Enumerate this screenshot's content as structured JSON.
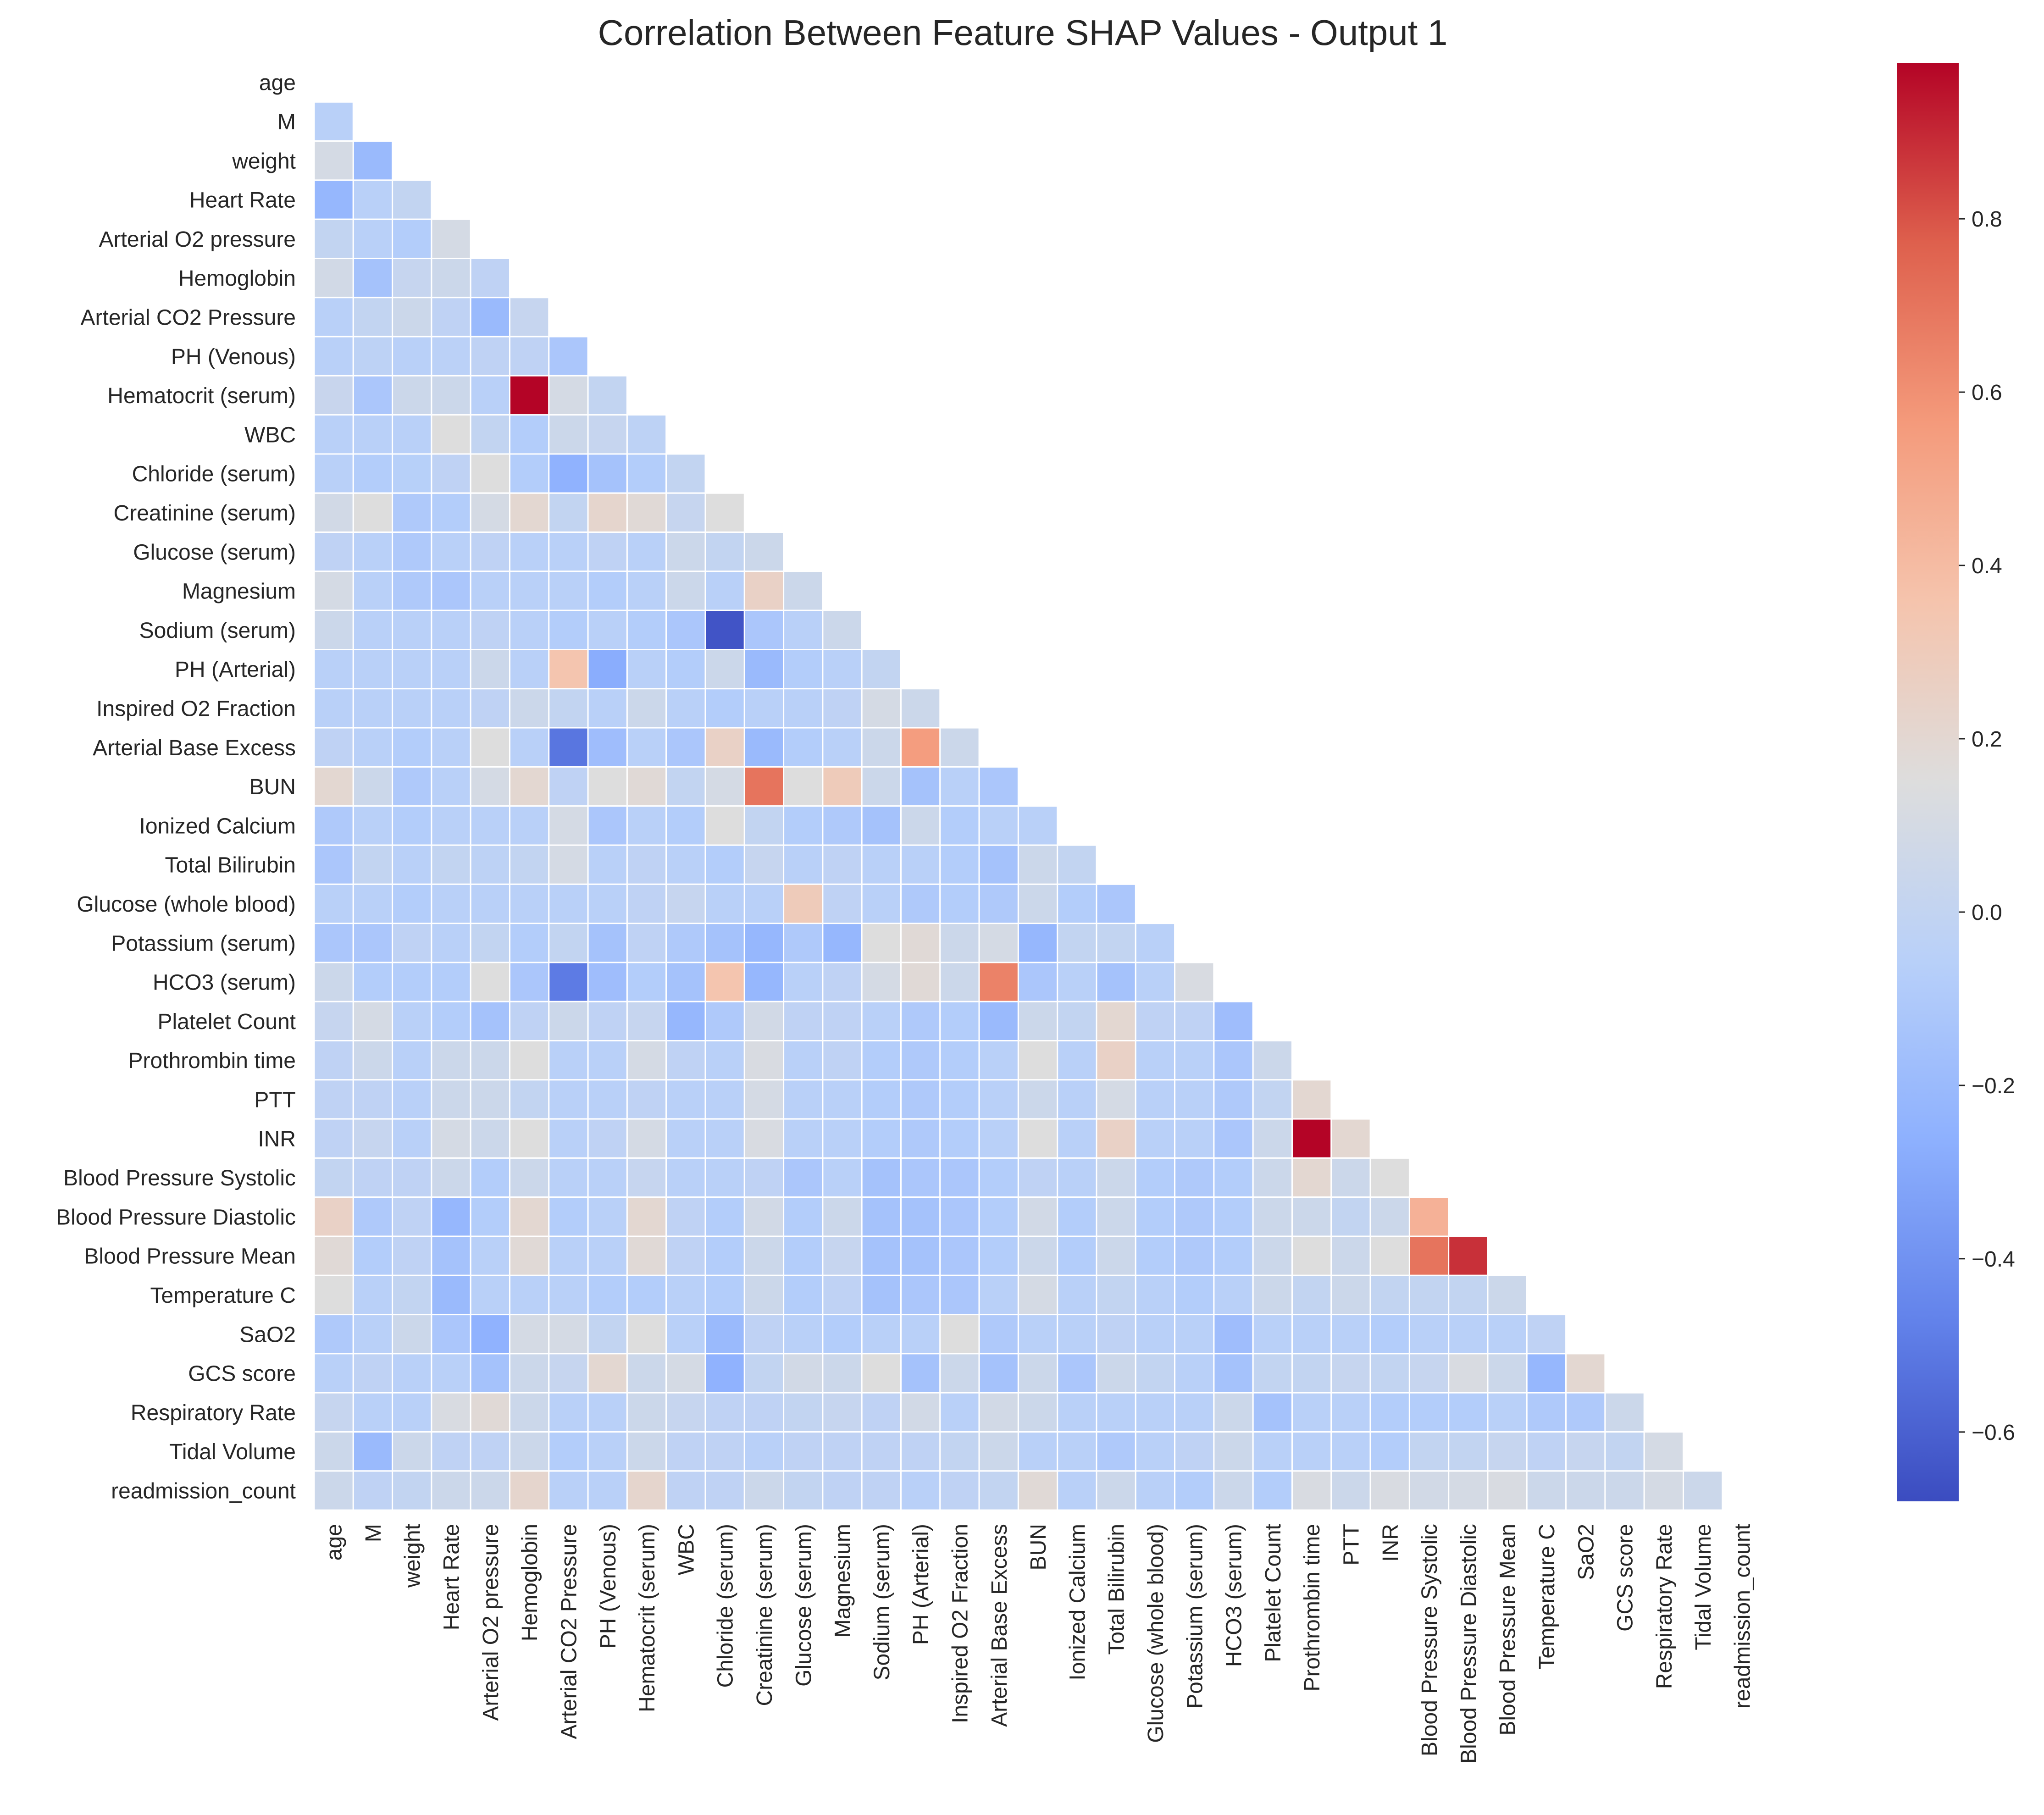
{
  "chart_data": {
    "type": "heatmap",
    "title": "Correlation Between Feature SHAP Values - Output 1",
    "xlabel": "",
    "ylabel": "",
    "mask": "upper-triangle-including-diagonal",
    "colormap": "coolwarm",
    "colorbar": {
      "min": -0.68,
      "max": 0.98,
      "ticks": [
        -0.6,
        -0.4,
        -0.2,
        0.0,
        0.2,
        0.4,
        0.6,
        0.8
      ],
      "tick_labels": [
        "−0.6",
        "−0.4",
        "−0.2",
        "0.0",
        "0.2",
        "0.4",
        "0.6",
        "0.8"
      ]
    },
    "features": [
      "age",
      "M",
      "weight",
      "Heart Rate",
      "Arterial O2 pressure",
      "Hemoglobin",
      "Arterial CO2 Pressure",
      "PH (Venous)",
      "Hematocrit (serum)",
      "WBC",
      "Chloride (serum)",
      "Creatinine (serum)",
      "Glucose (serum)",
      "Magnesium",
      "Sodium (serum)",
      "PH (Arterial)",
      "Inspired O2 Fraction",
      "Arterial Base Excess",
      "BUN",
      "Ionized Calcium",
      "Total Bilirubin",
      "Glucose (whole blood)",
      "Potassium (serum)",
      "HCO3 (serum)",
      "Platelet Count",
      "Prothrombin time",
      "PTT",
      "INR",
      "Blood Pressure Systolic",
      "Blood Pressure Diastolic",
      "Blood Pressure Mean",
      "Temperature C",
      "SaO2",
      "GCS score",
      "Respiratory Rate",
      "Tidal Volume",
      "readmission_count"
    ],
    "values": [
      [],
      [
        -0.05
      ],
      [
        0.1,
        -0.2
      ],
      [
        -0.22,
        -0.05,
        0.0
      ],
      [
        0.0,
        -0.05,
        -0.08,
        0.1
      ],
      [
        0.08,
        -0.15,
        0.02,
        0.05,
        -0.02
      ],
      [
        -0.05,
        0.0,
        0.05,
        -0.02,
        -0.2,
        0.02
      ],
      [
        -0.05,
        -0.03,
        -0.05,
        -0.04,
        -0.02,
        -0.02,
        -0.12
      ],
      [
        0.03,
        -0.12,
        0.05,
        0.05,
        -0.05,
        0.98,
        0.1,
        0.0
      ],
      [
        -0.05,
        -0.05,
        -0.05,
        0.15,
        0.0,
        -0.08,
        0.05,
        0.02,
        -0.03
      ],
      [
        -0.05,
        -0.08,
        -0.06,
        -0.02,
        0.15,
        -0.08,
        -0.25,
        -0.15,
        -0.08,
        0.0
      ],
      [
        0.08,
        0.15,
        -0.1,
        -0.08,
        0.1,
        0.2,
        0.0,
        0.22,
        0.18,
        0.02,
        0.15
      ],
      [
        -0.02,
        -0.05,
        -0.1,
        -0.05,
        -0.02,
        -0.05,
        -0.05,
        -0.02,
        -0.05,
        0.05,
        0.0,
        0.05
      ],
      [
        0.1,
        -0.05,
        -0.1,
        -0.12,
        -0.05,
        -0.05,
        -0.05,
        -0.08,
        -0.05,
        0.05,
        -0.05,
        0.25,
        0.05
      ],
      [
        0.05,
        -0.05,
        -0.05,
        -0.05,
        -0.02,
        -0.05,
        -0.08,
        -0.05,
        -0.08,
        -0.12,
        -0.65,
        -0.12,
        -0.05,
        0.05
      ],
      [
        -0.05,
        -0.05,
        -0.05,
        -0.05,
        0.05,
        -0.05,
        0.35,
        -0.28,
        -0.05,
        -0.08,
        0.05,
        -0.2,
        -0.08,
        -0.05,
        0.0
      ],
      [
        -0.05,
        -0.05,
        -0.05,
        -0.05,
        -0.02,
        0.05,
        0.0,
        -0.05,
        0.05,
        -0.05,
        -0.08,
        -0.05,
        -0.05,
        -0.02,
        0.1,
        0.05
      ],
      [
        -0.02,
        -0.05,
        -0.08,
        -0.05,
        0.15,
        -0.05,
        -0.52,
        -0.18,
        -0.05,
        -0.12,
        0.25,
        -0.2,
        -0.08,
        -0.05,
        0.05,
        0.55,
        0.05
      ],
      [
        0.2,
        0.05,
        -0.1,
        -0.05,
        0.1,
        0.2,
        -0.02,
        0.15,
        0.18,
        0.0,
        0.1,
        0.7,
        0.15,
        0.3,
        0.05,
        -0.15,
        -0.05,
        -0.12
      ],
      [
        -0.1,
        -0.05,
        -0.08,
        -0.05,
        -0.05,
        -0.05,
        0.1,
        -0.12,
        -0.05,
        -0.08,
        0.15,
        0.0,
        -0.08,
        -0.1,
        -0.15,
        0.05,
        -0.08,
        -0.05,
        -0.05
      ],
      [
        -0.12,
        0.0,
        -0.05,
        0.0,
        -0.03,
        0.0,
        0.1,
        -0.05,
        -0.02,
        -0.05,
        -0.08,
        0.02,
        -0.05,
        -0.02,
        -0.05,
        -0.05,
        -0.08,
        -0.15,
        0.05,
        0.0
      ],
      [
        -0.05,
        -0.05,
        -0.08,
        -0.05,
        -0.05,
        -0.05,
        -0.05,
        -0.05,
        -0.02,
        0.02,
        -0.05,
        -0.05,
        0.3,
        -0.02,
        -0.05,
        -0.1,
        -0.08,
        -0.1,
        0.05,
        -0.08,
        -0.12
      ],
      [
        -0.12,
        -0.12,
        -0.02,
        -0.05,
        0.0,
        -0.08,
        0.0,
        -0.15,
        -0.02,
        -0.1,
        -0.15,
        -0.22,
        -0.1,
        -0.22,
        0.15,
        0.18,
        0.05,
        0.1,
        -0.22,
        0.0,
        0.0,
        -0.05
      ],
      [
        0.05,
        -0.08,
        -0.08,
        -0.08,
        0.15,
        -0.12,
        -0.5,
        -0.18,
        -0.08,
        -0.15,
        0.35,
        -0.22,
        -0.05,
        -0.02,
        0.1,
        0.18,
        0.05,
        0.65,
        -0.12,
        -0.05,
        -0.15,
        -0.05,
        0.12
      ],
      [
        0.02,
        0.1,
        -0.05,
        -0.08,
        -0.15,
        -0.02,
        0.05,
        -0.02,
        0.02,
        -0.22,
        -0.1,
        0.08,
        -0.02,
        -0.02,
        -0.05,
        -0.1,
        -0.08,
        -0.2,
        0.05,
        0.0,
        0.2,
        -0.02,
        -0.02,
        -0.18
      ],
      [
        -0.02,
        0.05,
        -0.05,
        0.05,
        0.05,
        0.15,
        -0.05,
        -0.05,
        0.1,
        -0.02,
        -0.05,
        0.12,
        -0.05,
        -0.02,
        -0.08,
        -0.1,
        -0.08,
        -0.05,
        0.15,
        -0.05,
        0.25,
        -0.05,
        -0.05,
        -0.12,
        0.05
      ],
      [
        -0.02,
        -0.02,
        -0.05,
        0.05,
        0.05,
        0.0,
        -0.05,
        -0.05,
        -0.02,
        -0.05,
        -0.05,
        0.1,
        -0.05,
        -0.05,
        -0.08,
        -0.1,
        -0.08,
        -0.05,
        0.05,
        -0.05,
        0.1,
        -0.05,
        -0.05,
        -0.1,
        0.0,
        0.2
      ],
      [
        -0.02,
        0.02,
        -0.05,
        0.1,
        0.05,
        0.15,
        -0.05,
        -0.02,
        0.1,
        -0.05,
        -0.05,
        0.12,
        -0.05,
        -0.05,
        -0.08,
        -0.1,
        -0.08,
        -0.05,
        0.15,
        -0.05,
        0.25,
        -0.05,
        -0.05,
        -0.12,
        0.05,
        0.98,
        0.2
      ],
      [
        0.0,
        -0.02,
        -0.02,
        0.05,
        -0.08,
        0.05,
        -0.05,
        -0.05,
        0.02,
        -0.05,
        -0.05,
        -0.02,
        -0.12,
        -0.05,
        -0.15,
        -0.12,
        -0.12,
        -0.08,
        -0.02,
        -0.05,
        0.05,
        -0.08,
        -0.1,
        -0.08,
        0.05,
        0.2,
        0.05,
        0.15
      ],
      [
        0.25,
        -0.1,
        -0.02,
        -0.22,
        -0.08,
        0.2,
        -0.08,
        -0.05,
        0.2,
        -0.02,
        -0.08,
        0.08,
        -0.08,
        0.05,
        -0.15,
        -0.15,
        -0.12,
        -0.08,
        0.08,
        -0.08,
        0.05,
        -0.08,
        -0.1,
        -0.08,
        0.05,
        0.05,
        0.0,
        0.05,
        0.45
      ],
      [
        0.18,
        -0.08,
        -0.02,
        -0.15,
        -0.05,
        0.18,
        -0.05,
        -0.05,
        0.18,
        -0.02,
        -0.08,
        0.05,
        -0.08,
        0.02,
        -0.15,
        -0.15,
        -0.12,
        -0.08,
        0.05,
        -0.08,
        0.05,
        -0.08,
        -0.1,
        -0.08,
        0.05,
        0.15,
        0.05,
        0.15,
        0.7,
        0.88
      ],
      [
        0.15,
        -0.05,
        0.0,
        -0.2,
        -0.05,
        -0.05,
        -0.05,
        -0.08,
        -0.08,
        -0.05,
        -0.08,
        0.05,
        -0.08,
        -0.02,
        -0.15,
        -0.12,
        -0.12,
        -0.05,
        0.1,
        -0.05,
        0.0,
        -0.05,
        -0.08,
        -0.05,
        0.05,
        0.0,
        0.05,
        0.0,
        0.0,
        0.0,
        0.05
      ],
      [
        -0.1,
        -0.05,
        0.05,
        -0.12,
        -0.25,
        0.1,
        0.1,
        0.0,
        0.15,
        -0.05,
        -0.2,
        -0.02,
        -0.05,
        -0.08,
        -0.05,
        -0.05,
        0.15,
        -0.1,
        -0.05,
        -0.05,
        -0.02,
        -0.05,
        -0.05,
        -0.18,
        -0.05,
        -0.05,
        -0.05,
        -0.08,
        -0.05,
        -0.05,
        -0.05,
        -0.02
      ],
      [
        -0.05,
        -0.02,
        -0.05,
        -0.05,
        -0.15,
        0.05,
        0.02,
        0.2,
        0.05,
        0.1,
        -0.25,
        0.0,
        0.08,
        0.05,
        0.15,
        -0.15,
        0.05,
        -0.15,
        0.05,
        -0.12,
        0.05,
        0.0,
        -0.05,
        -0.15,
        0.0,
        0.0,
        0.02,
        0.0,
        0.02,
        0.12,
        0.05,
        -0.22,
        0.2
      ],
      [
        0.02,
        -0.05,
        -0.05,
        0.12,
        0.18,
        0.05,
        -0.05,
        -0.05,
        0.05,
        0.02,
        -0.02,
        -0.02,
        0.0,
        0.02,
        -0.02,
        0.08,
        -0.05,
        0.08,
        0.05,
        -0.05,
        -0.05,
        -0.05,
        -0.05,
        0.05,
        -0.15,
        -0.05,
        -0.05,
        -0.08,
        -0.08,
        -0.08,
        -0.05,
        -0.1,
        -0.1,
        0.05
      ],
      [
        0.05,
        -0.2,
        0.05,
        -0.02,
        -0.02,
        0.05,
        -0.08,
        -0.05,
        0.05,
        -0.02,
        -0.02,
        -0.05,
        -0.02,
        -0.02,
        -0.02,
        -0.02,
        0.0,
        0.05,
        -0.05,
        -0.05,
        -0.1,
        -0.05,
        -0.02,
        0.05,
        -0.05,
        -0.05,
        -0.05,
        -0.08,
        0.0,
        0.0,
        0.02,
        -0.02,
        0.02,
        0.0,
        0.1
      ],
      [
        0.05,
        -0.02,
        0.0,
        0.05,
        0.05,
        0.22,
        -0.05,
        -0.05,
        0.22,
        -0.02,
        -0.02,
        0.05,
        0.0,
        -0.02,
        -0.02,
        -0.05,
        -0.02,
        0.0,
        0.18,
        -0.05,
        0.05,
        -0.05,
        -0.08,
        0.05,
        -0.08,
        0.12,
        0.05,
        0.12,
        0.08,
        0.1,
        0.12,
        0.05,
        0.05,
        0.05,
        0.1,
        0.05
      ]
    ]
  }
}
